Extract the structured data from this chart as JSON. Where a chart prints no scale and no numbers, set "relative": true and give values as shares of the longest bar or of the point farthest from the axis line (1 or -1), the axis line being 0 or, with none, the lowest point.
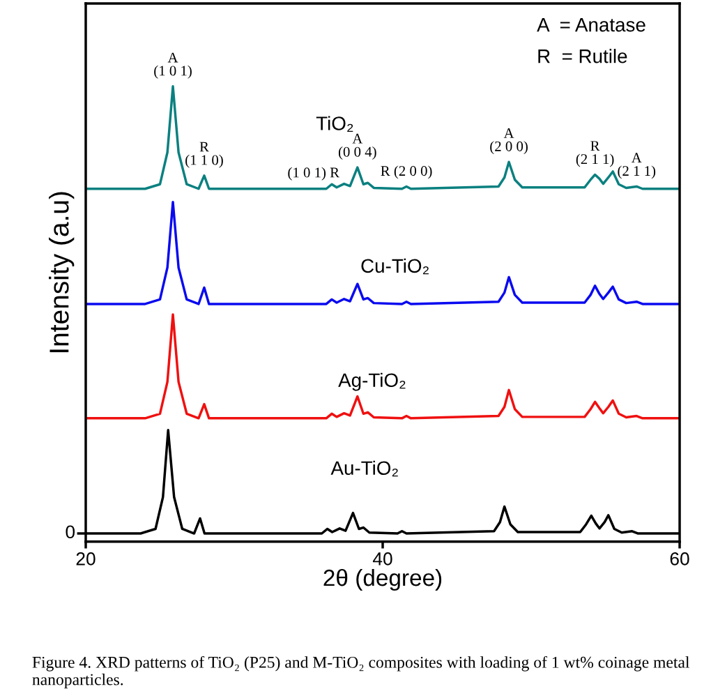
{
  "chart_data": {
    "type": "line",
    "relative": true,
    "xlabel": "2θ (degree)",
    "ylabel": "Intensity (a.u)",
    "xlim": [
      20,
      60
    ],
    "xticks": [
      20,
      40,
      60
    ],
    "grid": false,
    "legend": false,
    "marker": "none",
    "line_style": "solid",
    "x": [
      20,
      24.0,
      25.0,
      25.5,
      25.87,
      26.25,
      26.8,
      27.6,
      27.98,
      28.3,
      36.2,
      36.57,
      36.9,
      37.4,
      37.8,
      38.3,
      38.7,
      39.0,
      39.4,
      41.3,
      41.6,
      41.9,
      47.8,
      48.2,
      48.5,
      48.9,
      49.4,
      53.6,
      54.0,
      54.3,
      54.6,
      54.85,
      55.2,
      55.5,
      55.9,
      56.4,
      57.1,
      57.5,
      60
    ],
    "series": [
      {
        "name": "TiO₂",
        "color": "#0b8080",
        "values": [
          0.775,
          0.775,
          0.785,
          0.855,
          1.0,
          0.855,
          0.785,
          0.775,
          0.804,
          0.775,
          0.775,
          0.785,
          0.778,
          0.786,
          0.781,
          0.822,
          0.785,
          0.788,
          0.777,
          0.775,
          0.78,
          0.775,
          0.78,
          0.8,
          0.834,
          0.795,
          0.778,
          0.778,
          0.795,
          0.806,
          0.797,
          0.786,
          0.8,
          0.813,
          0.785,
          0.777,
          0.78,
          0.775,
          0.775
        ]
      },
      {
        "name": "Cu-TiO₂",
        "color": "#0a0af0",
        "values": [
          0.522,
          0.522,
          0.532,
          0.602,
          0.746,
          0.602,
          0.532,
          0.522,
          0.558,
          0.522,
          0.522,
          0.532,
          0.525,
          0.533,
          0.528,
          0.566,
          0.532,
          0.535,
          0.524,
          0.522,
          0.527,
          0.522,
          0.527,
          0.547,
          0.581,
          0.542,
          0.525,
          0.525,
          0.542,
          0.562,
          0.544,
          0.533,
          0.547,
          0.56,
          0.532,
          0.524,
          0.527,
          0.522,
          0.522
        ]
      },
      {
        "name": "Ag-TiO₂",
        "color": "#f01010",
        "values": [
          0.271,
          0.271,
          0.281,
          0.351,
          0.499,
          0.351,
          0.281,
          0.271,
          0.302,
          0.271,
          0.271,
          0.281,
          0.274,
          0.282,
          0.277,
          0.319,
          0.281,
          0.284,
          0.273,
          0.271,
          0.276,
          0.271,
          0.276,
          0.296,
          0.333,
          0.291,
          0.274,
          0.274,
          0.291,
          0.307,
          0.293,
          0.282,
          0.296,
          0.31,
          0.281,
          0.273,
          0.276,
          0.271,
          0.271
        ]
      },
      {
        "name": "Au-TiO₂",
        "color": "#000000",
        "x": [
          20,
          23.7,
          24.7,
          25.2,
          25.55,
          25.95,
          26.5,
          27.3,
          27.7,
          28.0,
          35.9,
          36.27,
          36.6,
          37.1,
          37.5,
          38.0,
          38.4,
          38.7,
          39.1,
          41.0,
          41.3,
          41.6,
          47.5,
          47.9,
          48.2,
          48.6,
          49.1,
          53.3,
          53.7,
          54.05,
          54.35,
          54.6,
          54.95,
          55.2,
          55.6,
          56.1,
          56.8,
          57.2,
          60
        ],
        "values": [
          0.018,
          0.018,
          0.028,
          0.098,
          0.245,
          0.098,
          0.028,
          0.018,
          0.051,
          0.018,
          0.018,
          0.028,
          0.021,
          0.029,
          0.024,
          0.063,
          0.028,
          0.031,
          0.02,
          0.018,
          0.023,
          0.018,
          0.023,
          0.043,
          0.077,
          0.038,
          0.021,
          0.021,
          0.038,
          0.057,
          0.04,
          0.029,
          0.043,
          0.058,
          0.028,
          0.02,
          0.023,
          0.018,
          0.018
        ]
      }
    ],
    "annotations": [
      {
        "text": "A\n(1 0 1)",
        "x": 25.87,
        "y": 1.0
      },
      {
        "text": "R\n(1 1 0)",
        "x": 27.98,
        "y": 0.804
      },
      {
        "text": "(1 0 1) R",
        "x": 36.57,
        "y": 0.785
      },
      {
        "text": "A\n(0 0 4)",
        "x": 38.3,
        "y": 0.822
      },
      {
        "text": "R (2 0 0)",
        "x": 41.6,
        "y": 0.78
      },
      {
        "text": "A\n(2 0 0)",
        "x": 48.5,
        "y": 0.834
      },
      {
        "text": "R\n(2 1 1)",
        "x": 54.3,
        "y": 0.806
      },
      {
        "text": "A\n(2 1 1)",
        "x": 57.1,
        "y": 0.78
      },
      {
        "text": "0",
        "x": 20,
        "y": 0.018
      },
      "A  = Anatase",
      "R  = Rutile",
      "Figure 4. XRD patterns of TiO₂ (P25) and M-TiO₂ composites with loading of 1 wt% coinage metal nanoparticles."
    ]
  }
}
